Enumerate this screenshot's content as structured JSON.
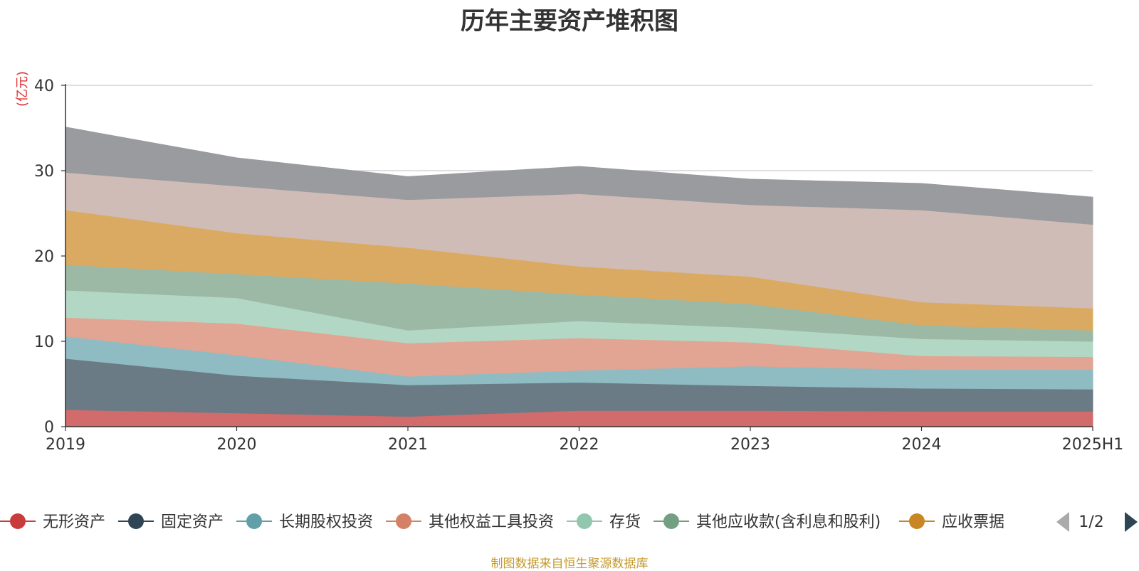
{
  "chart_data": {
    "type": "area",
    "title": "历年主要资产堆积图",
    "unit": "(亿元)",
    "x": [
      "2019",
      "2020",
      "2021",
      "2022",
      "2023",
      "2024",
      "2025H1"
    ],
    "ylim": [
      0,
      40
    ],
    "yticks": [
      "0",
      "10",
      "20",
      "30",
      "40"
    ],
    "grid": true,
    "stacked": true,
    "series": [
      {
        "name": "无形资产",
        "color": "#d26b6b",
        "legend_color": "#c83c3c",
        "values": [
          2.0,
          1.6,
          1.2,
          1.9,
          1.9,
          1.8,
          1.8
        ]
      },
      {
        "name": "固定资产",
        "color": "#6b7b86",
        "legend_color": "#2f4554",
        "values": [
          6.0,
          4.4,
          3.7,
          3.3,
          2.9,
          2.7,
          2.6
        ]
      },
      {
        "name": "长期股权投资",
        "color": "#8fbcc2",
        "legend_color": "#61a0a8",
        "values": [
          2.6,
          2.4,
          1.0,
          1.4,
          2.3,
          2.2,
          2.3
        ]
      },
      {
        "name": "其他权益工具投资",
        "color": "#e2a493",
        "legend_color": "#d48265",
        "values": [
          2.2,
          3.7,
          3.9,
          3.8,
          2.8,
          1.6,
          1.5
        ]
      },
      {
        "name": "存货",
        "color": "#b2d8c5",
        "legend_color": "#91c7ae",
        "values": [
          3.2,
          3.0,
          1.5,
          2.0,
          1.7,
          2.0,
          1.8
        ]
      },
      {
        "name": "其他应收款(含利息和股利)",
        "color": "#9cb9a6",
        "legend_color": "#749f83",
        "values": [
          3.0,
          2.8,
          5.5,
          3.1,
          2.8,
          1.6,
          1.3
        ]
      },
      {
        "name": "应收票据",
        "color": "#dbaa62",
        "legend_color": "#ca8622",
        "values": [
          6.4,
          4.8,
          4.2,
          3.3,
          3.2,
          2.7,
          2.6
        ]
      },
      {
        "name": "",
        "color": "#d0bcb7",
        "values": [
          4.4,
          5.5,
          5.6,
          8.5,
          8.4,
          10.8,
          9.8
        ]
      },
      {
        "name": "",
        "color": "#9a9b9f",
        "values": [
          5.3,
          3.3,
          2.7,
          3.2,
          3.0,
          3.1,
          3.2
        ]
      }
    ],
    "legend": {
      "position": "bottom",
      "page": "1/2"
    },
    "source": "制图数据来自恒生聚源数据库"
  }
}
